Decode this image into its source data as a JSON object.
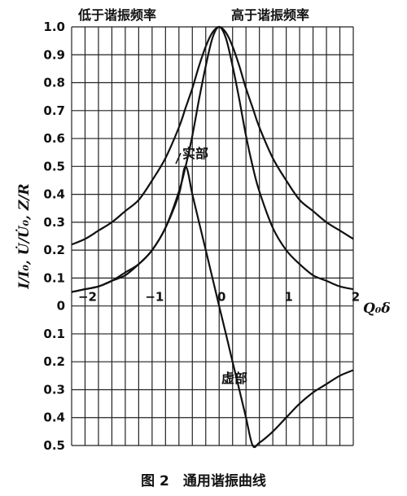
{
  "chart_data": {
    "type": "line",
    "xlabel": "Q₀δ",
    "ylabel": "I/I₀, U̇/U̇₀, Z/R",
    "xlim": [
      -2.2,
      2.0
    ],
    "ylim": [
      -0.5,
      1.0
    ],
    "grid": true,
    "x_ticks": [
      {
        "value": -2,
        "label": "−2"
      },
      {
        "value": -1,
        "label": "−1"
      },
      {
        "value": 0,
        "label": "0"
      },
      {
        "value": 1,
        "label": "1"
      },
      {
        "value": 2,
        "label": "2"
      }
    ],
    "y_ticks": [
      {
        "value": 1.0,
        "label": "1.0"
      },
      {
        "value": 0.9,
        "label": "0.9"
      },
      {
        "value": 0.8,
        "label": "0.8"
      },
      {
        "value": 0.7,
        "label": "0.7"
      },
      {
        "value": 0.6,
        "label": "0.6"
      },
      {
        "value": 0.5,
        "label": "0.5"
      },
      {
        "value": 0.4,
        "label": "0.4"
      },
      {
        "value": 0.3,
        "label": "0.3"
      },
      {
        "value": 0.2,
        "label": "0.2"
      },
      {
        "value": 0.1,
        "label": "0.1"
      },
      {
        "value": 0,
        "label": "0"
      },
      {
        "value": -0.1,
        "label": "0.1"
      },
      {
        "value": -0.2,
        "label": "0.2"
      },
      {
        "value": -0.3,
        "label": "0.3"
      },
      {
        "value": -0.4,
        "label": "0.4"
      },
      {
        "value": -0.5,
        "label": "0.5"
      }
    ],
    "annotations": {
      "below_resonance": "低于谐振频率",
      "above_resonance": "高于谐振频率",
      "real_part": "实部",
      "imag_part": "虚部"
    },
    "series": [
      {
        "x": [
          -2.2,
          -2.0,
          -1.8,
          -1.6,
          -1.4,
          -1.2,
          -1.0,
          -0.8,
          -0.6,
          -0.5,
          -0.4,
          -0.3,
          -0.2,
          -0.1,
          0,
          0.1,
          0.2,
          0.3,
          0.4,
          0.5,
          0.6,
          0.8,
          1.0,
          1.2,
          1.4,
          1.6,
          1.8,
          2.0
        ],
        "values": [
          0.22,
          0.24,
          0.27,
          0.3,
          0.34,
          0.38,
          0.45,
          0.53,
          0.64,
          0.71,
          0.78,
          0.86,
          0.93,
          0.98,
          1.0,
          0.98,
          0.93,
          0.86,
          0.78,
          0.71,
          0.64,
          0.53,
          0.45,
          0.38,
          0.34,
          0.3,
          0.27,
          0.24
        ]
      },
      {
        "x": [
          -2.2,
          -2.0,
          -1.8,
          -1.6,
          -1.4,
          -1.2,
          -1.0,
          -0.8,
          -0.6,
          -0.5,
          -0.4,
          -0.3,
          -0.2,
          -0.1,
          0,
          0.1,
          0.2,
          0.3,
          0.4,
          0.5,
          0.6,
          0.8,
          1.0,
          1.2,
          1.4,
          1.6,
          1.8,
          2.0
        ],
        "values": [
          0.05,
          0.06,
          0.07,
          0.09,
          0.11,
          0.15,
          0.2,
          0.28,
          0.41,
          0.5,
          0.61,
          0.74,
          0.86,
          0.96,
          1.0,
          0.96,
          0.86,
          0.74,
          0.61,
          0.5,
          0.41,
          0.28,
          0.2,
          0.15,
          0.11,
          0.09,
          0.07,
          0.06
        ]
      },
      {
        "x": [
          -2.2,
          -2.0,
          -1.8,
          -1.6,
          -1.4,
          -1.2,
          -1.0,
          -0.8,
          -0.6,
          -0.5,
          -0.4,
          -0.3,
          -0.2,
          -0.1,
          0,
          0.1,
          0.2,
          0.3,
          0.4,
          0.5,
          0.6,
          0.8,
          1.0,
          1.2,
          1.4,
          1.6,
          1.8,
          2.0
        ],
        "values": [
          0.05,
          0.06,
          0.07,
          0.09,
          0.12,
          0.15,
          0.2,
          0.28,
          0.4,
          0.5,
          0.4,
          0.3,
          0.2,
          0.1,
          0.0,
          -0.1,
          -0.2,
          -0.3,
          -0.4,
          -0.5,
          -0.49,
          -0.45,
          -0.4,
          -0.35,
          -0.31,
          -0.28,
          -0.25,
          -0.23
        ]
      }
    ]
  },
  "caption": "图 2　通用谐振曲线"
}
